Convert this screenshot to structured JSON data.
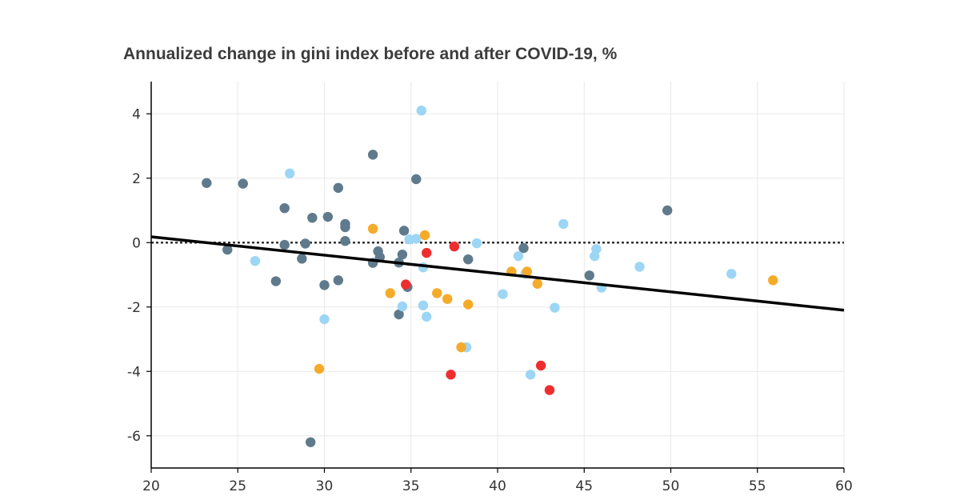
{
  "chart_data": {
    "type": "scatter",
    "title": "Annualized change in gini index before and after COVID-19, %",
    "xlabel": "",
    "ylabel": "",
    "xlim": [
      20,
      60
    ],
    "ylim": [
      -7,
      5
    ],
    "xticks": [
      20,
      25,
      30,
      35,
      40,
      45,
      50,
      55,
      60
    ],
    "yticks": [
      4,
      2,
      0,
      -2,
      -4,
      -6
    ],
    "grid": true,
    "reference_line": {
      "y": 0,
      "style": "dotted"
    },
    "trend_line": {
      "x": [
        20,
        60
      ],
      "y": [
        0.18,
        -2.1
      ]
    },
    "colors": {
      "dark_blue": "#5f7a8c",
      "light_blue": "#9dd6f5",
      "orange": "#f5ab2a",
      "red": "#ee2e2e",
      "trend": "#000000"
    },
    "series": [
      {
        "name": "dark_blue",
        "color": "#5f7a8c",
        "points": [
          {
            "x": 23.2,
            "y": 1.85
          },
          {
            "x": 25.3,
            "y": 1.83
          },
          {
            "x": 24.4,
            "y": -0.22
          },
          {
            "x": 27.7,
            "y": 1.07
          },
          {
            "x": 27.2,
            "y": -1.2
          },
          {
            "x": 27.7,
            "y": -0.07
          },
          {
            "x": 28.9,
            "y": -0.03
          },
          {
            "x": 29.3,
            "y": 0.77
          },
          {
            "x": 28.7,
            "y": -0.5
          },
          {
            "x": 30.2,
            "y": 0.8
          },
          {
            "x": 30.0,
            "y": -1.32
          },
          {
            "x": 30.8,
            "y": 1.7
          },
          {
            "x": 31.2,
            "y": 0.58
          },
          {
            "x": 31.2,
            "y": 0.48
          },
          {
            "x": 31.2,
            "y": 0.05
          },
          {
            "x": 30.8,
            "y": -1.17
          },
          {
            "x": 29.2,
            "y": -6.2
          },
          {
            "x": 32.8,
            "y": 2.73
          },
          {
            "x": 33.1,
            "y": -0.27
          },
          {
            "x": 33.2,
            "y": -0.45
          },
          {
            "x": 32.8,
            "y": -0.63
          },
          {
            "x": 34.6,
            "y": 0.37
          },
          {
            "x": 34.5,
            "y": -0.37
          },
          {
            "x": 34.3,
            "y": -0.62
          },
          {
            "x": 34.8,
            "y": -1.38
          },
          {
            "x": 34.3,
            "y": -2.23
          },
          {
            "x": 35.3,
            "y": 1.97
          },
          {
            "x": 38.3,
            "y": -0.52
          },
          {
            "x": 41.5,
            "y": -0.17
          },
          {
            "x": 45.3,
            "y": -1.02
          },
          {
            "x": 49.8,
            "y": 1.0
          }
        ]
      },
      {
        "name": "light_blue",
        "color": "#9dd6f5",
        "points": [
          {
            "x": 28.0,
            "y": 2.15
          },
          {
            "x": 26.0,
            "y": -0.57
          },
          {
            "x": 30.0,
            "y": -2.38
          },
          {
            "x": 35.6,
            "y": 4.1
          },
          {
            "x": 34.9,
            "y": 0.1
          },
          {
            "x": 35.3,
            "y": 0.12
          },
          {
            "x": 35.7,
            "y": -0.77
          },
          {
            "x": 34.5,
            "y": -1.98
          },
          {
            "x": 35.7,
            "y": -1.95
          },
          {
            "x": 35.9,
            "y": -2.3
          },
          {
            "x": 38.8,
            "y": -0.02
          },
          {
            "x": 38.2,
            "y": -3.25
          },
          {
            "x": 40.3,
            "y": -1.6
          },
          {
            "x": 41.2,
            "y": -0.42
          },
          {
            "x": 41.6,
            "y": -0.97
          },
          {
            "x": 41.9,
            "y": -4.1
          },
          {
            "x": 43.3,
            "y": -2.02
          },
          {
            "x": 43.8,
            "y": 0.58
          },
          {
            "x": 45.7,
            "y": -0.2
          },
          {
            "x": 45.6,
            "y": -0.42
          },
          {
            "x": 46.0,
            "y": -1.4
          },
          {
            "x": 48.2,
            "y": -0.75
          },
          {
            "x": 53.5,
            "y": -0.97
          }
        ]
      },
      {
        "name": "orange",
        "color": "#f5ab2a",
        "points": [
          {
            "x": 32.8,
            "y": 0.43
          },
          {
            "x": 33.8,
            "y": -1.57
          },
          {
            "x": 35.8,
            "y": 0.23
          },
          {
            "x": 36.5,
            "y": -1.57
          },
          {
            "x": 37.1,
            "y": -1.75
          },
          {
            "x": 38.3,
            "y": -1.92
          },
          {
            "x": 37.9,
            "y": -3.25
          },
          {
            "x": 29.7,
            "y": -3.92
          },
          {
            "x": 40.8,
            "y": -0.9
          },
          {
            "x": 41.7,
            "y": -0.9
          },
          {
            "x": 42.3,
            "y": -1.28
          },
          {
            "x": 55.9,
            "y": -1.17
          }
        ]
      },
      {
        "name": "red",
        "color": "#ee2e2e",
        "points": [
          {
            "x": 34.7,
            "y": -1.3
          },
          {
            "x": 35.9,
            "y": -0.32
          },
          {
            "x": 37.5,
            "y": -0.12
          },
          {
            "x": 37.3,
            "y": -4.1
          },
          {
            "x": 42.5,
            "y": -3.82
          },
          {
            "x": 43.0,
            "y": -4.58
          }
        ]
      }
    ]
  }
}
